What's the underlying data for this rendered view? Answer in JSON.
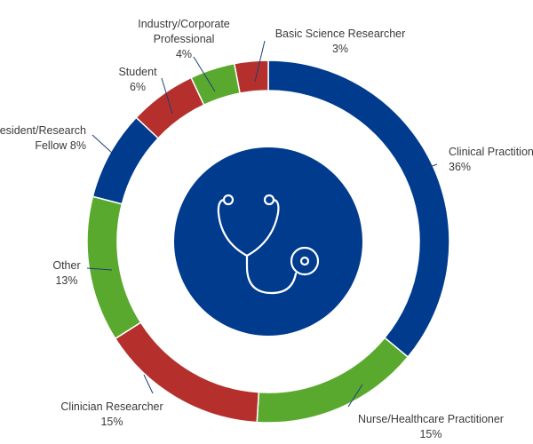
{
  "chart_data": {
    "type": "pie",
    "title": "",
    "legend": "none",
    "center_icon": "stethoscope-icon",
    "colors": {
      "blue": "#003b8e",
      "green": "#5aa92f",
      "red": "#b5302d",
      "center": "#003b8e",
      "icon_stroke": "#ffffff"
    },
    "slices": [
      {
        "label_lines": [
          "Clinical Practitioner",
          "36%"
        ],
        "value": 36,
        "color": "#003b8e"
      },
      {
        "label_lines": [
          "Nurse/Healthcare Practitioner",
          "15%"
        ],
        "value": 15,
        "color": "#5aa92f"
      },
      {
        "label_lines": [
          "Clinician Researcher",
          "15%"
        ],
        "value": 15,
        "color": "#b5302d"
      },
      {
        "label_lines": [
          "Other",
          "13%"
        ],
        "value": 13,
        "color": "#5aa92f"
      },
      {
        "label_lines": [
          "Resident/Research",
          "Fellow 8%"
        ],
        "value": 8,
        "color": "#003b8e"
      },
      {
        "label_lines": [
          "Student",
          "6%"
        ],
        "value": 6,
        "color": "#b5302d"
      },
      {
        "label_lines": [
          "Industry/Corporate",
          "Professional",
          "4%"
        ],
        "value": 4,
        "color": "#5aa92f"
      },
      {
        "label_lines": [
          "Basic Science Researcher",
          "3%"
        ],
        "value": 3,
        "color": "#b5302d"
      }
    ]
  }
}
